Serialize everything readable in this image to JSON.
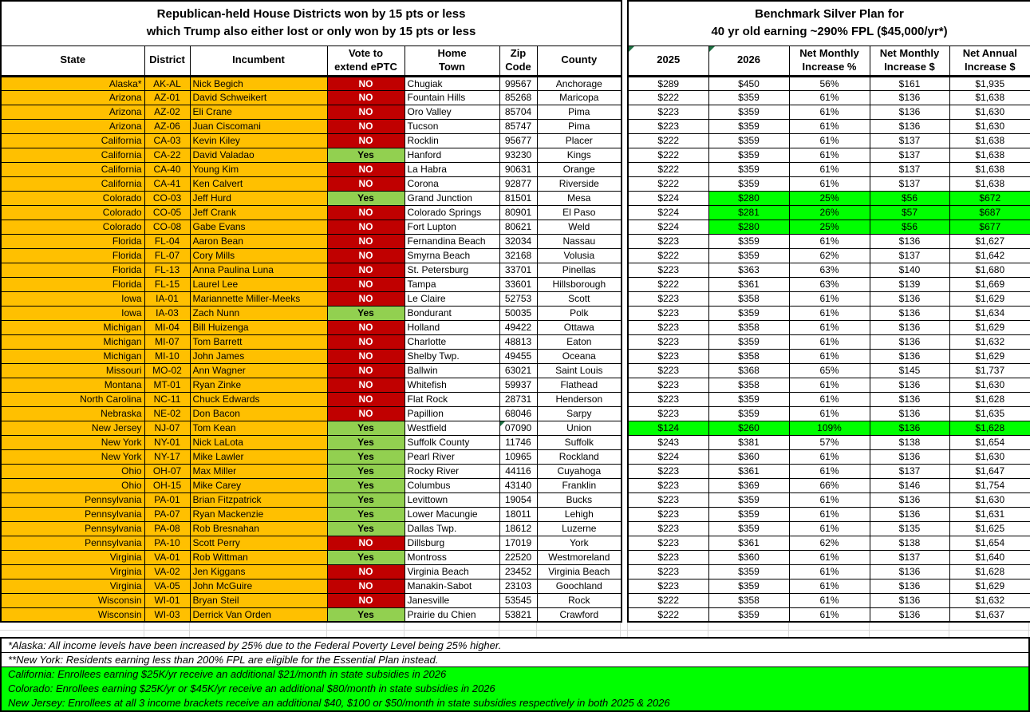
{
  "left_table": {
    "title_line1": "Republican-held House Districts won by 15 pts or less",
    "title_line2": "which Trump also either lost or only won by 15 pts or less",
    "headers": {
      "state": "State",
      "district": "District",
      "incumbent": "Incumbent",
      "vote": "Vote to\nextend ePTC",
      "town": "Home\nTown",
      "zip": "Zip\nCode",
      "county": "County"
    }
  },
  "right_table": {
    "title_line1": "Benchmark Silver Plan for",
    "title_line2": "40 yr old earning ~290% FPL ($45,000/yr*)",
    "headers": {
      "y2025": "2025",
      "y2026": "2026",
      "pct": "Net Monthly\nIncrease %",
      "monthly": "Net Monthly\nIncrease $",
      "annual": "Net Annual\nIncrease $"
    }
  },
  "rows": [
    {
      "state": "Alaska*",
      "district": "AK-AL",
      "incumbent": "Nick Begich",
      "vote": "NO",
      "town": "Chugiak",
      "zip": "99567",
      "county": "Anchorage",
      "p2025": "$289",
      "p2026": "$450",
      "pct": "56%",
      "monthly": "$161",
      "annual": "$1,935",
      "highlight": "none",
      "zip_flag": false
    },
    {
      "state": "Arizona",
      "district": "AZ-01",
      "incumbent": "David Schweikert",
      "vote": "NO",
      "town": "Fountain Hills",
      "zip": "85268",
      "county": "Maricopa",
      "p2025": "$222",
      "p2026": "$359",
      "pct": "61%",
      "monthly": "$136",
      "annual": "$1,638",
      "highlight": "none",
      "zip_flag": false
    },
    {
      "state": "Arizona",
      "district": "AZ-02",
      "incumbent": "Eli Crane",
      "vote": "NO",
      "town": "Oro Valley",
      "zip": "85704",
      "county": "Pima",
      "p2025": "$223",
      "p2026": "$359",
      "pct": "61%",
      "monthly": "$136",
      "annual": "$1,630",
      "highlight": "none",
      "zip_flag": false
    },
    {
      "state": "Arizona",
      "district": "AZ-06",
      "incumbent": "Juan Ciscomani",
      "vote": "NO",
      "town": "Tucson",
      "zip": "85747",
      "county": "Pima",
      "p2025": "$223",
      "p2026": "$359",
      "pct": "61%",
      "monthly": "$136",
      "annual": "$1,630",
      "highlight": "none",
      "zip_flag": false
    },
    {
      "state": "California",
      "district": "CA-03",
      "incumbent": "Kevin Kiley",
      "vote": "NO",
      "town": "Rocklin",
      "zip": "95677",
      "county": "Placer",
      "p2025": "$222",
      "p2026": "$359",
      "pct": "61%",
      "monthly": "$137",
      "annual": "$1,638",
      "highlight": "none",
      "zip_flag": false
    },
    {
      "state": "California",
      "district": "CA-22",
      "incumbent": "David Valadao",
      "vote": "Yes",
      "town": "Hanford",
      "zip": "93230",
      "county": "Kings",
      "p2025": "$222",
      "p2026": "$359",
      "pct": "61%",
      "monthly": "$137",
      "annual": "$1,638",
      "highlight": "none",
      "zip_flag": false
    },
    {
      "state": "California",
      "district": "CA-40",
      "incumbent": "Young Kim",
      "vote": "NO",
      "town": "La Habra",
      "zip": "90631",
      "county": "Orange",
      "p2025": "$222",
      "p2026": "$359",
      "pct": "61%",
      "monthly": "$137",
      "annual": "$1,638",
      "highlight": "none",
      "zip_flag": false
    },
    {
      "state": "California",
      "district": "CA-41",
      "incumbent": "Ken Calvert",
      "vote": "NO",
      "town": "Corona",
      "zip": "92877",
      "county": "Riverside",
      "p2025": "$222",
      "p2026": "$359",
      "pct": "61%",
      "monthly": "$137",
      "annual": "$1,638",
      "highlight": "none",
      "zip_flag": false
    },
    {
      "state": "Colorado",
      "district": "CO-03",
      "incumbent": "Jeff Hurd",
      "vote": "Yes",
      "town": "Grand Junction",
      "zip": "81501",
      "county": "Mesa",
      "p2025": "$224",
      "p2026": "$280",
      "pct": "25%",
      "monthly": "$56",
      "annual": "$672",
      "highlight": "partial",
      "zip_flag": false
    },
    {
      "state": "Colorado",
      "district": "CO-05",
      "incumbent": "Jeff Crank",
      "vote": "NO",
      "town": "Colorado Springs",
      "zip": "80901",
      "county": "El Paso",
      "p2025": "$224",
      "p2026": "$281",
      "pct": "26%",
      "monthly": "$57",
      "annual": "$687",
      "highlight": "partial",
      "zip_flag": false
    },
    {
      "state": "Colorado",
      "district": "CO-08",
      "incumbent": "Gabe Evans",
      "vote": "NO",
      "town": "Fort Lupton",
      "zip": "80621",
      "county": "Weld",
      "p2025": "$224",
      "p2026": "$280",
      "pct": "25%",
      "monthly": "$56",
      "annual": "$677",
      "highlight": "partial",
      "zip_flag": false
    },
    {
      "state": "Florida",
      "district": "FL-04",
      "incumbent": "Aaron Bean",
      "vote": "NO",
      "town": "Fernandina Beach",
      "zip": "32034",
      "county": "Nassau",
      "p2025": "$223",
      "p2026": "$359",
      "pct": "61%",
      "monthly": "$136",
      "annual": "$1,627",
      "highlight": "none",
      "zip_flag": false
    },
    {
      "state": "Florida",
      "district": "FL-07",
      "incumbent": "Cory Mills",
      "vote": "NO",
      "town": "Smyrna Beach",
      "zip": "32168",
      "county": "Volusia",
      "p2025": "$222",
      "p2026": "$359",
      "pct": "62%",
      "monthly": "$137",
      "annual": "$1,642",
      "highlight": "none",
      "zip_flag": false
    },
    {
      "state": "Florida",
      "district": "FL-13",
      "incumbent": "Anna Paulina Luna",
      "vote": "NO",
      "town": "St. Petersburg",
      "zip": "33701",
      "county": "Pinellas",
      "p2025": "$223",
      "p2026": "$363",
      "pct": "63%",
      "monthly": "$140",
      "annual": "$1,680",
      "highlight": "none",
      "zip_flag": false
    },
    {
      "state": "Florida",
      "district": "FL-15",
      "incumbent": "Laurel Lee",
      "vote": "NO",
      "town": "Tampa",
      "zip": "33601",
      "county": "Hillsborough",
      "p2025": "$222",
      "p2026": "$361",
      "pct": "63%",
      "monthly": "$139",
      "annual": "$1,669",
      "highlight": "none",
      "zip_flag": false
    },
    {
      "state": "Iowa",
      "district": "IA-01",
      "incumbent": "Mariannette Miller-Meeks",
      "vote": "NO",
      "town": "Le Claire",
      "zip": "52753",
      "county": "Scott",
      "p2025": "$223",
      "p2026": "$358",
      "pct": "61%",
      "monthly": "$136",
      "annual": "$1,629",
      "highlight": "none",
      "zip_flag": false
    },
    {
      "state": "Iowa",
      "district": "IA-03",
      "incumbent": "Zach Nunn",
      "vote": "Yes",
      "town": "Bondurant",
      "zip": "50035",
      "county": "Polk",
      "p2025": "$223",
      "p2026": "$359",
      "pct": "61%",
      "monthly": "$136",
      "annual": "$1,634",
      "highlight": "none",
      "zip_flag": false
    },
    {
      "state": "Michigan",
      "district": "MI-04",
      "incumbent": "Bill Huizenga",
      "vote": "NO",
      "town": "Holland",
      "zip": "49422",
      "county": "Ottawa",
      "p2025": "$223",
      "p2026": "$358",
      "pct": "61%",
      "monthly": "$136",
      "annual": "$1,629",
      "highlight": "none",
      "zip_flag": false
    },
    {
      "state": "Michigan",
      "district": "MI-07",
      "incumbent": "Tom Barrett",
      "vote": "NO",
      "town": "Charlotte",
      "zip": "48813",
      "county": "Eaton",
      "p2025": "$223",
      "p2026": "$359",
      "pct": "61%",
      "monthly": "$136",
      "annual": "$1,632",
      "highlight": "none",
      "zip_flag": false
    },
    {
      "state": "Michigan",
      "district": "MI-10",
      "incumbent": "John James",
      "vote": "NO",
      "town": "Shelby Twp.",
      "zip": "49455",
      "county": "Oceana",
      "p2025": "$223",
      "p2026": "$358",
      "pct": "61%",
      "monthly": "$136",
      "annual": "$1,629",
      "highlight": "none",
      "zip_flag": false
    },
    {
      "state": "Missouri",
      "district": "MO-02",
      "incumbent": "Ann Wagner",
      "vote": "NO",
      "town": "Ballwin",
      "zip": "63021",
      "county": "Saint Louis",
      "p2025": "$223",
      "p2026": "$368",
      "pct": "65%",
      "monthly": "$145",
      "annual": "$1,737",
      "highlight": "none",
      "zip_flag": false
    },
    {
      "state": "Montana",
      "district": "MT-01",
      "incumbent": "Ryan Zinke",
      "vote": "NO",
      "town": "Whitefish",
      "zip": "59937",
      "county": "Flathead",
      "p2025": "$223",
      "p2026": "$358",
      "pct": "61%",
      "monthly": "$136",
      "annual": "$1,630",
      "highlight": "none",
      "zip_flag": false
    },
    {
      "state": "North Carolina",
      "district": "NC-11",
      "incumbent": "Chuck Edwards",
      "vote": "NO",
      "town": "Flat Rock",
      "zip": "28731",
      "county": "Henderson",
      "p2025": "$223",
      "p2026": "$359",
      "pct": "61%",
      "monthly": "$136",
      "annual": "$1,628",
      "highlight": "none",
      "zip_flag": false
    },
    {
      "state": "Nebraska",
      "district": "NE-02",
      "incumbent": "Don Bacon",
      "vote": "NO",
      "town": "Papillion",
      "zip": "68046",
      "county": "Sarpy",
      "p2025": "$223",
      "p2026": "$359",
      "pct": "61%",
      "monthly": "$136",
      "annual": "$1,635",
      "highlight": "none",
      "zip_flag": false
    },
    {
      "state": "New Jersey",
      "district": "NJ-07",
      "incumbent": "Tom Kean",
      "vote": "Yes",
      "town": "Westfield",
      "zip": "07090",
      "county": "Union",
      "p2025": "$124",
      "p2026": "$260",
      "pct": "109%",
      "monthly": "$136",
      "annual": "$1,628",
      "highlight": "full",
      "zip_flag": true
    },
    {
      "state": "New York",
      "district": "NY-01",
      "incumbent": "Nick LaLota",
      "vote": "Yes",
      "town": "Suffolk County",
      "zip": "11746",
      "county": "Suffolk",
      "p2025": "$243",
      "p2026": "$381",
      "pct": "57%",
      "monthly": "$138",
      "annual": "$1,654",
      "highlight": "none",
      "zip_flag": false
    },
    {
      "state": "New York",
      "district": "NY-17",
      "incumbent": "Mike Lawler",
      "vote": "Yes",
      "town": "Pearl River",
      "zip": "10965",
      "county": "Rockland",
      "p2025": "$224",
      "p2026": "$360",
      "pct": "61%",
      "monthly": "$136",
      "annual": "$1,630",
      "highlight": "none",
      "zip_flag": false
    },
    {
      "state": "Ohio",
      "district": "OH-07",
      "incumbent": "Max Miller",
      "vote": "Yes",
      "town": "Rocky River",
      "zip": "44116",
      "county": "Cuyahoga",
      "p2025": "$223",
      "p2026": "$361",
      "pct": "61%",
      "monthly": "$137",
      "annual": "$1,647",
      "highlight": "none",
      "zip_flag": false
    },
    {
      "state": "Ohio",
      "district": "OH-15",
      "incumbent": "Mike Carey",
      "vote": "Yes",
      "town": "Columbus",
      "zip": "43140",
      "county": "Franklin",
      "p2025": "$223",
      "p2026": "$369",
      "pct": "66%",
      "monthly": "$146",
      "annual": "$1,754",
      "highlight": "none",
      "zip_flag": false
    },
    {
      "state": "Pennsylvania",
      "district": "PA-01",
      "incumbent": "Brian Fitzpatrick",
      "vote": "Yes",
      "town": "Levittown",
      "zip": "19054",
      "county": "Bucks",
      "p2025": "$223",
      "p2026": "$359",
      "pct": "61%",
      "monthly": "$136",
      "annual": "$1,630",
      "highlight": "none",
      "zip_flag": false
    },
    {
      "state": "Pennsylvania",
      "district": "PA-07",
      "incumbent": "Ryan Mackenzie",
      "vote": "Yes",
      "town": "Lower Macungie",
      "zip": "18011",
      "county": "Lehigh",
      "p2025": "$223",
      "p2026": "$359",
      "pct": "61%",
      "monthly": "$136",
      "annual": "$1,631",
      "highlight": "none",
      "zip_flag": false
    },
    {
      "state": "Pennsylvania",
      "district": "PA-08",
      "incumbent": "Rob Bresnahan",
      "vote": "Yes",
      "town": "Dallas Twp.",
      "zip": "18612",
      "county": "Luzerne",
      "p2025": "$223",
      "p2026": "$359",
      "pct": "61%",
      "monthly": "$135",
      "annual": "$1,625",
      "highlight": "none",
      "zip_flag": false
    },
    {
      "state": "Pennsylvania",
      "district": "PA-10",
      "incumbent": "Scott Perry",
      "vote": "NO",
      "town": "Dillsburg",
      "zip": "17019",
      "county": "York",
      "p2025": "$223",
      "p2026": "$361",
      "pct": "62%",
      "monthly": "$138",
      "annual": "$1,654",
      "highlight": "none",
      "zip_flag": false
    },
    {
      "state": "Virginia",
      "district": "VA-01",
      "incumbent": "Rob Wittman",
      "vote": "Yes",
      "town": "Montross",
      "zip": "22520",
      "county": "Westmoreland",
      "p2025": "$223",
      "p2026": "$360",
      "pct": "61%",
      "monthly": "$137",
      "annual": "$1,640",
      "highlight": "none",
      "zip_flag": false
    },
    {
      "state": "Virginia",
      "district": "VA-02",
      "incumbent": "Jen Kiggans",
      "vote": "NO",
      "town": "Virginia Beach",
      "zip": "23452",
      "county": "Virginia Beach",
      "p2025": "$223",
      "p2026": "$359",
      "pct": "61%",
      "monthly": "$136",
      "annual": "$1,628",
      "highlight": "none",
      "zip_flag": false
    },
    {
      "state": "Virginia",
      "district": "VA-05",
      "incumbent": "John McGuire",
      "vote": "NO",
      "town": "Manakin-Sabot",
      "zip": "23103",
      "county": "Goochland",
      "p2025": "$223",
      "p2026": "$359",
      "pct": "61%",
      "monthly": "$136",
      "annual": "$1,629",
      "highlight": "none",
      "zip_flag": false
    },
    {
      "state": "Wisconsin",
      "district": "WI-01",
      "incumbent": "Bryan Steil",
      "vote": "NO",
      "town": "Janesville",
      "zip": "53545",
      "county": "Rock",
      "p2025": "$222",
      "p2026": "$358",
      "pct": "61%",
      "monthly": "$136",
      "annual": "$1,632",
      "highlight": "none",
      "zip_flag": false
    },
    {
      "state": "Wisconsin",
      "district": "WI-03",
      "incumbent": "Derrick Van Orden",
      "vote": "Yes",
      "town": "Prairie du Chien",
      "zip": "53821",
      "county": "Crawford",
      "p2025": "$222",
      "p2026": "$359",
      "pct": "61%",
      "monthly": "$136",
      "annual": "$1,637",
      "highlight": "none",
      "zip_flag": false
    }
  ],
  "footnotes": [
    {
      "text": "*Alaska: All income levels have been increased by 25% due to the Federal Poverty Level being 25% higher.",
      "bg": "white"
    },
    {
      "text": "**New York: Residents earning less than 200% FPL are eligible for the Essential Plan instead.",
      "bg": "white"
    },
    {
      "text": "California: Enrollees earning $25K/yr receive an additional $21/month in state subsidies in 2026",
      "bg": "green"
    },
    {
      "text": "Colorado: Enrollees earning $25K/yr or $45K/yr receive an additional $80/month in state subsidies in 2026",
      "bg": "green"
    },
    {
      "text": "New Jersey: Enrollees at all 3 income brackets receive an additional $40, $100 or $50/month in state subsidies respectively in both 2025 & 2026",
      "bg": "green"
    }
  ],
  "icons": {
    "corner_flag": "green-corner-flag"
  },
  "colors": {
    "state_orange": "#FFC000",
    "no_red": "#C00000",
    "yes_green": "#92D050",
    "highlight_green": "#00FF00",
    "flag_green": "#1F7244",
    "gridline_gray": "#D9D9D9"
  }
}
